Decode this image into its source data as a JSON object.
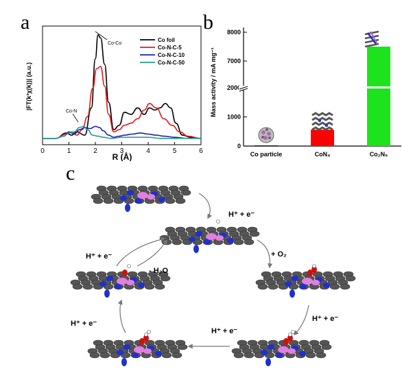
{
  "panels": {
    "a": "a",
    "b": "b",
    "c": "c"
  },
  "chart_data": [
    {
      "type": "line",
      "xlabel": "R (Å)",
      "ylabel": "|FT(k³χ(k))| (a.u.)",
      "xlim": [
        0,
        6
      ],
      "ylim": [
        0,
        1
      ],
      "xticks": [
        "0",
        "1",
        "2",
        "3",
        "4",
        "5",
        "6"
      ],
      "legend_position": "top-right",
      "annotations": [
        "Co-Co",
        "Co-N"
      ],
      "series": [
        {
          "name": "Co foil",
          "color": "#000000",
          "x": [
            0,
            0.5,
            0.9,
            1.1,
            1.3,
            1.6,
            1.85,
            2.0,
            2.1,
            2.2,
            2.35,
            2.5,
            2.7,
            2.9,
            3.1,
            3.35,
            3.6,
            3.85,
            4.05,
            4.25,
            4.45,
            4.65,
            4.85,
            5.05,
            5.3,
            5.6,
            6.0
          ],
          "y": [
            0.02,
            0.02,
            0.07,
            0.05,
            0.08,
            0.05,
            0.3,
            0.75,
            0.97,
            0.94,
            0.7,
            0.35,
            0.1,
            0.14,
            0.26,
            0.24,
            0.3,
            0.24,
            0.3,
            0.28,
            0.3,
            0.34,
            0.3,
            0.16,
            0.05,
            0.03,
            0.02
          ]
        },
        {
          "name": "Co-N-C-5",
          "color": "#e41a1c",
          "x": [
            0,
            0.5,
            0.9,
            1.1,
            1.3,
            1.5,
            1.7,
            1.9,
            2.05,
            2.2,
            2.35,
            2.5,
            2.7,
            2.9,
            3.1,
            3.35,
            3.6,
            3.85,
            4.05,
            4.3,
            4.6,
            4.9,
            5.2,
            5.5,
            6.0
          ],
          "y": [
            0.02,
            0.02,
            0.06,
            0.08,
            0.05,
            0.1,
            0.22,
            0.48,
            0.66,
            0.68,
            0.5,
            0.24,
            0.08,
            0.1,
            0.14,
            0.16,
            0.2,
            0.28,
            0.34,
            0.3,
            0.2,
            0.14,
            0.08,
            0.04,
            0.02
          ]
        },
        {
          "name": "Co-N-C-10",
          "color": "#1f1fb4",
          "x": [
            0,
            0.5,
            0.8,
            1.0,
            1.2,
            1.4,
            1.6,
            1.8,
            2.0,
            2.15,
            2.3,
            2.5,
            2.7,
            2.9,
            3.1,
            3.4,
            3.7,
            4.0,
            4.3,
            4.6,
            5.0,
            5.5,
            6.0
          ],
          "y": [
            0.02,
            0.02,
            0.04,
            0.08,
            0.06,
            0.1,
            0.12,
            0.11,
            0.13,
            0.12,
            0.09,
            0.05,
            0.03,
            0.04,
            0.05,
            0.06,
            0.07,
            0.06,
            0.05,
            0.04,
            0.03,
            0.02,
            0.02
          ]
        },
        {
          "name": "Co-N-C-50",
          "color": "#2a9d8f",
          "x": [
            0,
            0.5,
            0.8,
            1.0,
            1.2,
            1.4,
            1.55,
            1.7,
            1.9,
            2.1,
            2.3,
            2.6,
            3.0,
            3.5,
            4.0,
            4.5,
            5.0,
            5.5,
            6.0
          ],
          "y": [
            0.02,
            0.02,
            0.04,
            0.07,
            0.08,
            0.12,
            0.13,
            0.1,
            0.05,
            0.04,
            0.03,
            0.02,
            0.03,
            0.03,
            0.03,
            0.02,
            0.02,
            0.02,
            0.02
          ]
        }
      ]
    },
    {
      "type": "bar",
      "ylabel": "Mass activity / mA mg⁻¹",
      "categories": [
        "Co particle",
        "CoN₄",
        "Co₂N₅"
      ],
      "values": [
        20,
        560,
        7500
      ],
      "colors": [
        "#000000",
        "#ff0000",
        "#1de31d"
      ],
      "yticks": [
        "0",
        "1000",
        "2000",
        "7000",
        "8000"
      ],
      "ylim": [
        0,
        8000
      ],
      "axis_break": [
        2100,
        6800
      ]
    }
  ],
  "mechanism": {
    "labels": {
      "step1": "H⁺ + e⁻",
      "step2": "+ O₂",
      "step3": "H⁺ + e⁻",
      "step4": "H⁺ + e⁻",
      "step5": "H⁺ + e⁻",
      "step6": "H⁺ + e⁻",
      "water": "- H₂O"
    },
    "colors": {
      "carbon": "#555555",
      "nitrogen": "#1f2fd0",
      "cobalt": "#e27fe0",
      "oxygen": "#d01010",
      "hydrogen": "#ffffff"
    }
  }
}
